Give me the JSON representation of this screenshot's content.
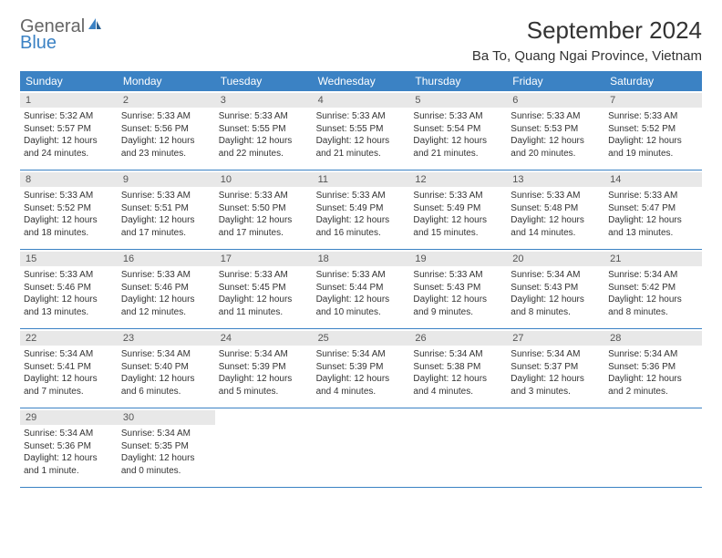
{
  "brand": {
    "word1": "General",
    "word2": "Blue"
  },
  "title": "September 2024",
  "location": "Ba To, Quang Ngai Province, Vietnam",
  "colors": {
    "header_bg": "#3b82c4",
    "header_text": "#ffffff",
    "daynum_bg": "#e8e8e8",
    "border": "#3b82c4",
    "text": "#333333",
    "logo_gray": "#666666",
    "logo_blue": "#3b82c4",
    "background": "#ffffff"
  },
  "dayNames": [
    "Sunday",
    "Monday",
    "Tuesday",
    "Wednesday",
    "Thursday",
    "Friday",
    "Saturday"
  ],
  "weeks": [
    [
      {
        "n": "1",
        "sr": "Sunrise: 5:32 AM",
        "ss": "Sunset: 5:57 PM",
        "d1": "Daylight: 12 hours",
        "d2": "and 24 minutes."
      },
      {
        "n": "2",
        "sr": "Sunrise: 5:33 AM",
        "ss": "Sunset: 5:56 PM",
        "d1": "Daylight: 12 hours",
        "d2": "and 23 minutes."
      },
      {
        "n": "3",
        "sr": "Sunrise: 5:33 AM",
        "ss": "Sunset: 5:55 PM",
        "d1": "Daylight: 12 hours",
        "d2": "and 22 minutes."
      },
      {
        "n": "4",
        "sr": "Sunrise: 5:33 AM",
        "ss": "Sunset: 5:55 PM",
        "d1": "Daylight: 12 hours",
        "d2": "and 21 minutes."
      },
      {
        "n": "5",
        "sr": "Sunrise: 5:33 AM",
        "ss": "Sunset: 5:54 PM",
        "d1": "Daylight: 12 hours",
        "d2": "and 21 minutes."
      },
      {
        "n": "6",
        "sr": "Sunrise: 5:33 AM",
        "ss": "Sunset: 5:53 PM",
        "d1": "Daylight: 12 hours",
        "d2": "and 20 minutes."
      },
      {
        "n": "7",
        "sr": "Sunrise: 5:33 AM",
        "ss": "Sunset: 5:52 PM",
        "d1": "Daylight: 12 hours",
        "d2": "and 19 minutes."
      }
    ],
    [
      {
        "n": "8",
        "sr": "Sunrise: 5:33 AM",
        "ss": "Sunset: 5:52 PM",
        "d1": "Daylight: 12 hours",
        "d2": "and 18 minutes."
      },
      {
        "n": "9",
        "sr": "Sunrise: 5:33 AM",
        "ss": "Sunset: 5:51 PM",
        "d1": "Daylight: 12 hours",
        "d2": "and 17 minutes."
      },
      {
        "n": "10",
        "sr": "Sunrise: 5:33 AM",
        "ss": "Sunset: 5:50 PM",
        "d1": "Daylight: 12 hours",
        "d2": "and 17 minutes."
      },
      {
        "n": "11",
        "sr": "Sunrise: 5:33 AM",
        "ss": "Sunset: 5:49 PM",
        "d1": "Daylight: 12 hours",
        "d2": "and 16 minutes."
      },
      {
        "n": "12",
        "sr": "Sunrise: 5:33 AM",
        "ss": "Sunset: 5:49 PM",
        "d1": "Daylight: 12 hours",
        "d2": "and 15 minutes."
      },
      {
        "n": "13",
        "sr": "Sunrise: 5:33 AM",
        "ss": "Sunset: 5:48 PM",
        "d1": "Daylight: 12 hours",
        "d2": "and 14 minutes."
      },
      {
        "n": "14",
        "sr": "Sunrise: 5:33 AM",
        "ss": "Sunset: 5:47 PM",
        "d1": "Daylight: 12 hours",
        "d2": "and 13 minutes."
      }
    ],
    [
      {
        "n": "15",
        "sr": "Sunrise: 5:33 AM",
        "ss": "Sunset: 5:46 PM",
        "d1": "Daylight: 12 hours",
        "d2": "and 13 minutes."
      },
      {
        "n": "16",
        "sr": "Sunrise: 5:33 AM",
        "ss": "Sunset: 5:46 PM",
        "d1": "Daylight: 12 hours",
        "d2": "and 12 minutes."
      },
      {
        "n": "17",
        "sr": "Sunrise: 5:33 AM",
        "ss": "Sunset: 5:45 PM",
        "d1": "Daylight: 12 hours",
        "d2": "and 11 minutes."
      },
      {
        "n": "18",
        "sr": "Sunrise: 5:33 AM",
        "ss": "Sunset: 5:44 PM",
        "d1": "Daylight: 12 hours",
        "d2": "and 10 minutes."
      },
      {
        "n": "19",
        "sr": "Sunrise: 5:33 AM",
        "ss": "Sunset: 5:43 PM",
        "d1": "Daylight: 12 hours",
        "d2": "and 9 minutes."
      },
      {
        "n": "20",
        "sr": "Sunrise: 5:34 AM",
        "ss": "Sunset: 5:43 PM",
        "d1": "Daylight: 12 hours",
        "d2": "and 8 minutes."
      },
      {
        "n": "21",
        "sr": "Sunrise: 5:34 AM",
        "ss": "Sunset: 5:42 PM",
        "d1": "Daylight: 12 hours",
        "d2": "and 8 minutes."
      }
    ],
    [
      {
        "n": "22",
        "sr": "Sunrise: 5:34 AM",
        "ss": "Sunset: 5:41 PM",
        "d1": "Daylight: 12 hours",
        "d2": "and 7 minutes."
      },
      {
        "n": "23",
        "sr": "Sunrise: 5:34 AM",
        "ss": "Sunset: 5:40 PM",
        "d1": "Daylight: 12 hours",
        "d2": "and 6 minutes."
      },
      {
        "n": "24",
        "sr": "Sunrise: 5:34 AM",
        "ss": "Sunset: 5:39 PM",
        "d1": "Daylight: 12 hours",
        "d2": "and 5 minutes."
      },
      {
        "n": "25",
        "sr": "Sunrise: 5:34 AM",
        "ss": "Sunset: 5:39 PM",
        "d1": "Daylight: 12 hours",
        "d2": "and 4 minutes."
      },
      {
        "n": "26",
        "sr": "Sunrise: 5:34 AM",
        "ss": "Sunset: 5:38 PM",
        "d1": "Daylight: 12 hours",
        "d2": "and 4 minutes."
      },
      {
        "n": "27",
        "sr": "Sunrise: 5:34 AM",
        "ss": "Sunset: 5:37 PM",
        "d1": "Daylight: 12 hours",
        "d2": "and 3 minutes."
      },
      {
        "n": "28",
        "sr": "Sunrise: 5:34 AM",
        "ss": "Sunset: 5:36 PM",
        "d1": "Daylight: 12 hours",
        "d2": "and 2 minutes."
      }
    ],
    [
      {
        "n": "29",
        "sr": "Sunrise: 5:34 AM",
        "ss": "Sunset: 5:36 PM",
        "d1": "Daylight: 12 hours",
        "d2": "and 1 minute."
      },
      {
        "n": "30",
        "sr": "Sunrise: 5:34 AM",
        "ss": "Sunset: 5:35 PM",
        "d1": "Daylight: 12 hours",
        "d2": "and 0 minutes."
      },
      null,
      null,
      null,
      null,
      null
    ]
  ]
}
